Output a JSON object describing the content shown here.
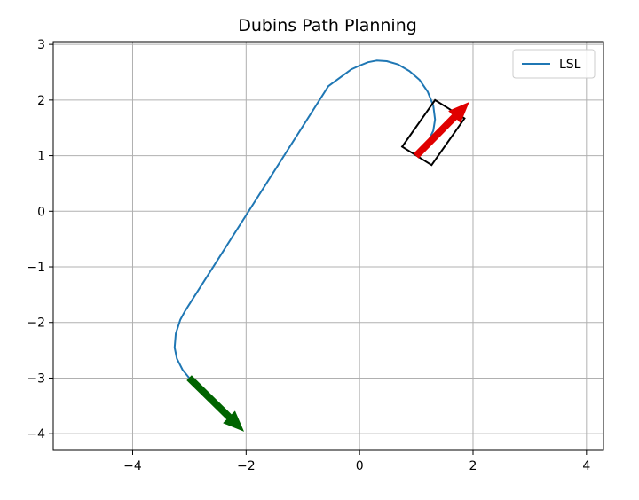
{
  "chart_data": {
    "type": "line",
    "title": "Dubins Path Planning",
    "xlabel": "",
    "ylabel": "",
    "xlim": [
      -5.4,
      4.3
    ],
    "ylim": [
      -4.3,
      3.05
    ],
    "xticks": [
      -4,
      -2,
      0,
      2,
      4
    ],
    "yticks": [
      -4,
      -3,
      -2,
      -1,
      0,
      1,
      2,
      3
    ],
    "xtick_labels": [
      "−4",
      "−2",
      "0",
      "2",
      "4"
    ],
    "ytick_labels": [
      "−4",
      "−3",
      "−2",
      "−1",
      "0",
      "1",
      "2",
      "3"
    ],
    "grid": true,
    "legend_position": "top-right",
    "series": [
      {
        "name": "LSL",
        "color": "#1f77b4",
        "x": [
          -3.0,
          -3.12,
          -3.22,
          -3.26,
          -3.24,
          -3.16,
          -3.08,
          -0.55,
          -0.15,
          0.0,
          0.15,
          0.3,
          0.48,
          0.68,
          0.88,
          1.06,
          1.2,
          1.3,
          1.33,
          1.3,
          1.22,
          1.1,
          1.0
        ],
        "y": [
          -3.0,
          -2.85,
          -2.65,
          -2.45,
          -2.2,
          -1.95,
          -1.8,
          2.25,
          2.55,
          2.62,
          2.68,
          2.71,
          2.7,
          2.64,
          2.52,
          2.36,
          2.15,
          1.9,
          1.65,
          1.45,
          1.28,
          1.12,
          1.0
        ]
      }
    ],
    "start_arrow": {
      "x": -3.0,
      "y": -3.0,
      "dx": 0.95,
      "dy": -0.95,
      "color": "#006400"
    },
    "goal_arrow": {
      "x": 1.0,
      "y": 1.0,
      "dx": 0.92,
      "dy": 0.95,
      "color": "#e00000"
    },
    "goal_box": {
      "corners": [
        [
          1.33,
          2.0
        ],
        [
          1.85,
          1.67
        ],
        [
          1.27,
          0.83
        ],
        [
          0.75,
          1.16
        ]
      ],
      "color": "#000000"
    }
  }
}
